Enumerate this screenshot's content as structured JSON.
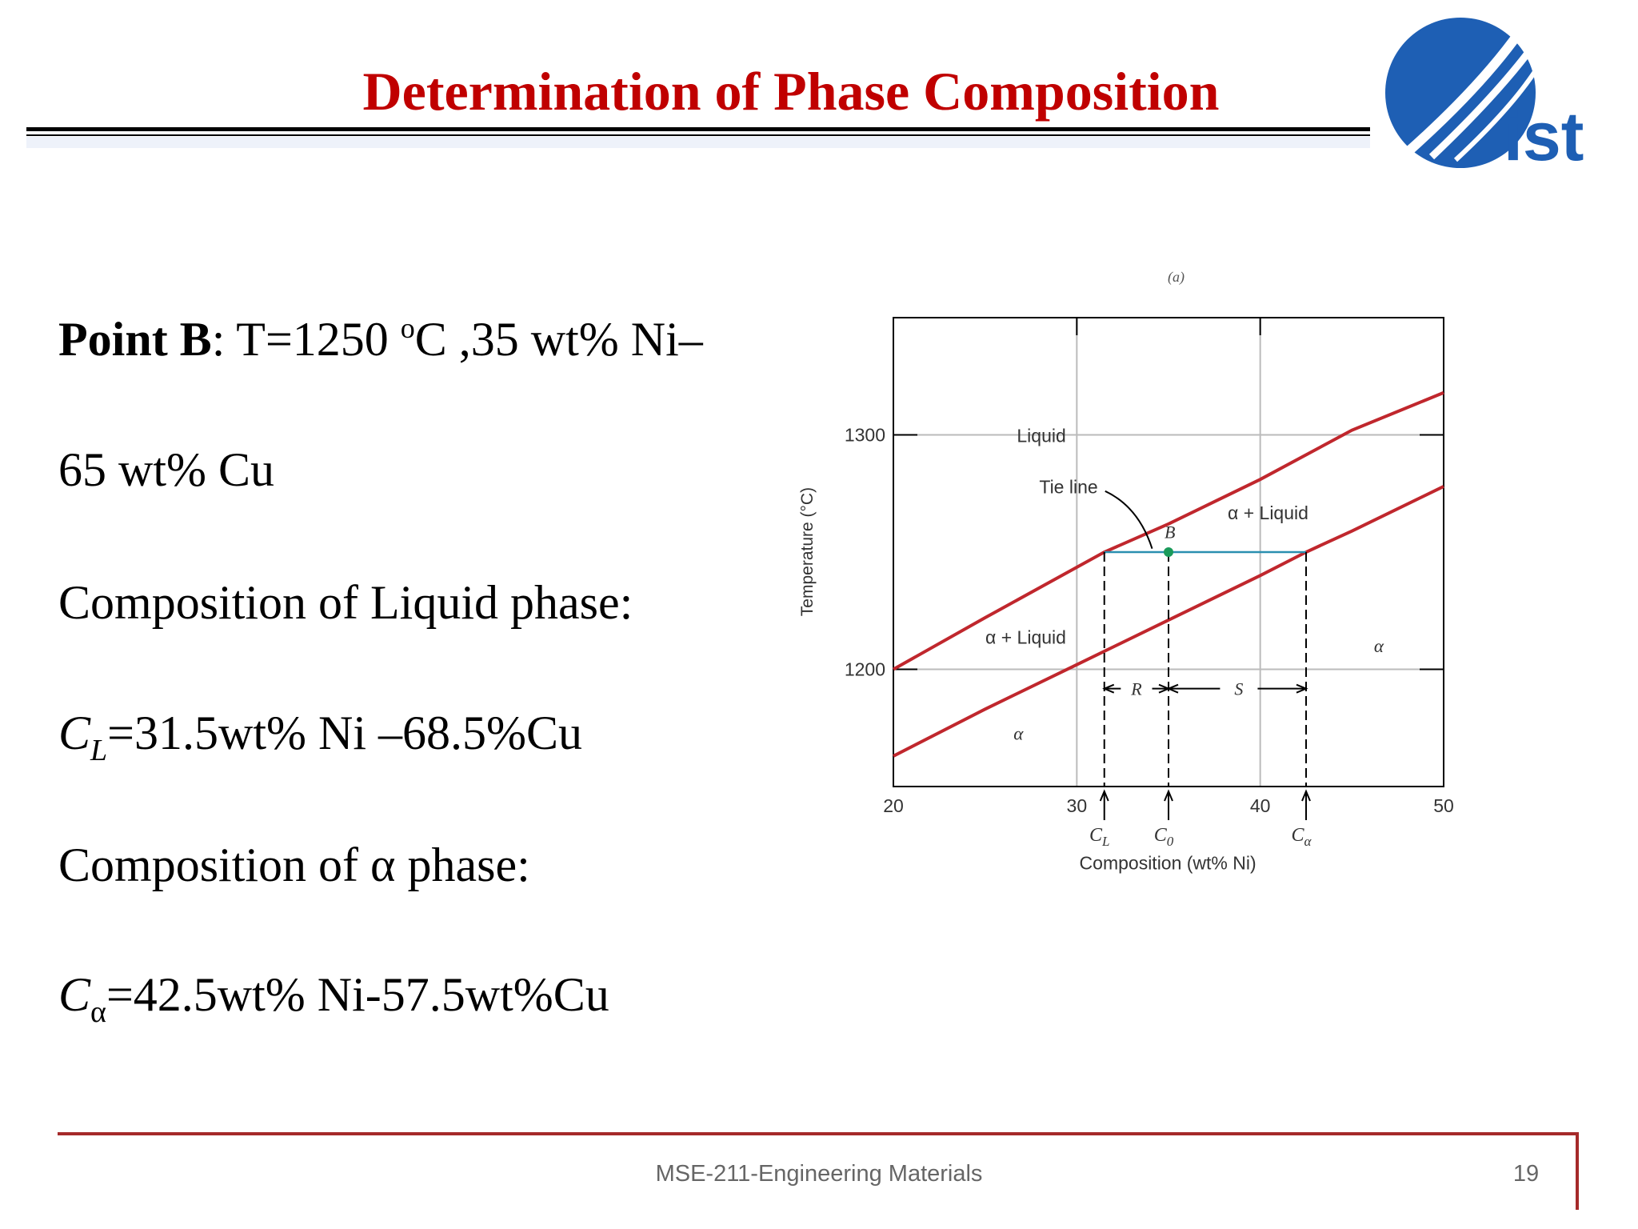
{
  "header": {
    "title": "Determination of Phase Composition",
    "logo_text": "ist"
  },
  "body": {
    "lines": [
      [
        {
          "text": "Point B",
          "style": "bold"
        },
        {
          "text": ": T=1250 "
        },
        {
          "text": "o",
          "style": "sup"
        },
        {
          "text": "C ,35 wt% Ni–"
        }
      ],
      [
        {
          "text": "65 wt% Cu"
        }
      ],
      [
        {
          "text": "Composition of Liquid phase:"
        }
      ],
      [
        {
          "text": "C",
          "style": "italic"
        },
        {
          "text": "L",
          "style": "italic-sub"
        },
        {
          "text": "=31.5wt% Ni –68.5%Cu"
        }
      ],
      [
        {
          "text": "Composition of α phase:"
        }
      ],
      [
        {
          "text": "C",
          "style": "italic"
        },
        {
          "text": "α",
          "style": "sub"
        },
        {
          "text": "=42.5wt% Ni-57.5wt%Cu"
        }
      ]
    ]
  },
  "chart_data": {
    "type": "line",
    "caption": "(a)",
    "x_label": "Composition (wt% Ni)",
    "y_label": "Temperature (°C)",
    "xlim": [
      20,
      50
    ],
    "ylim": [
      1150,
      1350
    ],
    "xticks": [
      20,
      30,
      40,
      50
    ],
    "yticks": [
      1200,
      1300
    ],
    "grid": true,
    "series": [
      {
        "color": "#c0272d",
        "x": [
          20,
          25,
          31.5,
          35,
          40,
          45,
          50
        ],
        "values": [
          1200,
          1222,
          1250,
          1262,
          1281,
          1302,
          1318
        ]
      },
      {
        "color": "#c0272d",
        "x": [
          20,
          25,
          30,
          35,
          40,
          42.5,
          45,
          50
        ],
        "values": [
          1163,
          1183,
          1202,
          1221,
          1240,
          1250,
          1259,
          1278
        ]
      }
    ],
    "tie_line": {
      "temperature": 1250,
      "x": [
        31.5,
        42.5
      ],
      "color": "#2a8fb0"
    },
    "point": {
      "label": "B",
      "x": 35,
      "y": 1250,
      "color": "#1a9a5a"
    },
    "markers": [
      {
        "symbol": "C",
        "sub": "L",
        "x": 31.5
      },
      {
        "symbol": "C",
        "sub": "0",
        "x": 35
      },
      {
        "symbol": "C",
        "sub": "α",
        "x": 42.5
      }
    ],
    "annotations": [
      "Liquid",
      "Tie line",
      "α + Liquid",
      "α + Liquid",
      "α",
      "α",
      "R",
      "S"
    ]
  },
  "footer": {
    "course": "MSE-211-Engineering Materials",
    "page": "19"
  }
}
